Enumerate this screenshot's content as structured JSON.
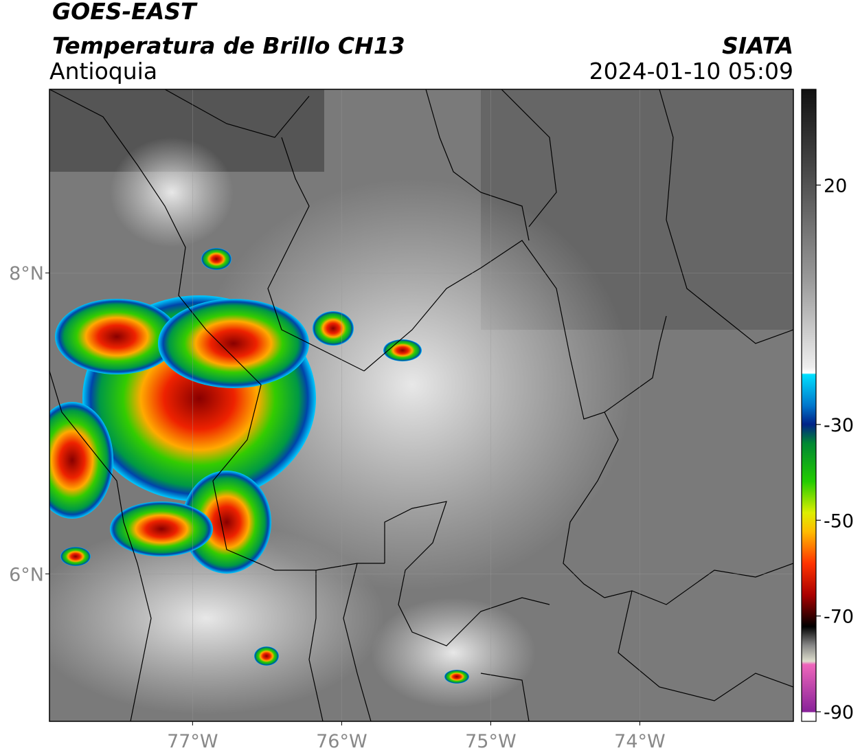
{
  "header": {
    "title": "GOES-EAST",
    "subtitle": "Temperatura de Brillo CH13",
    "region": "Antioquia",
    "source": "SIATA",
    "timestamp": "2024-01-10 05:09"
  },
  "map": {
    "lon_range": [
      -77.96,
      -72.97
    ],
    "lat_range": [
      5.02,
      9.22
    ],
    "lon_ticks": [
      {
        "value": -77,
        "label": "77°W"
      },
      {
        "value": -76,
        "label": "76°W"
      },
      {
        "value": -75,
        "label": "75°W"
      },
      {
        "value": -74,
        "label": "74°W"
      }
    ],
    "lat_ticks": [
      {
        "value": 8,
        "label": "8°N"
      },
      {
        "value": 6,
        "label": "6°N"
      }
    ]
  },
  "colorbar": {
    "range": [
      -92,
      40
    ],
    "ticks": [
      20,
      -30,
      -50,
      -70,
      -90
    ]
  }
}
